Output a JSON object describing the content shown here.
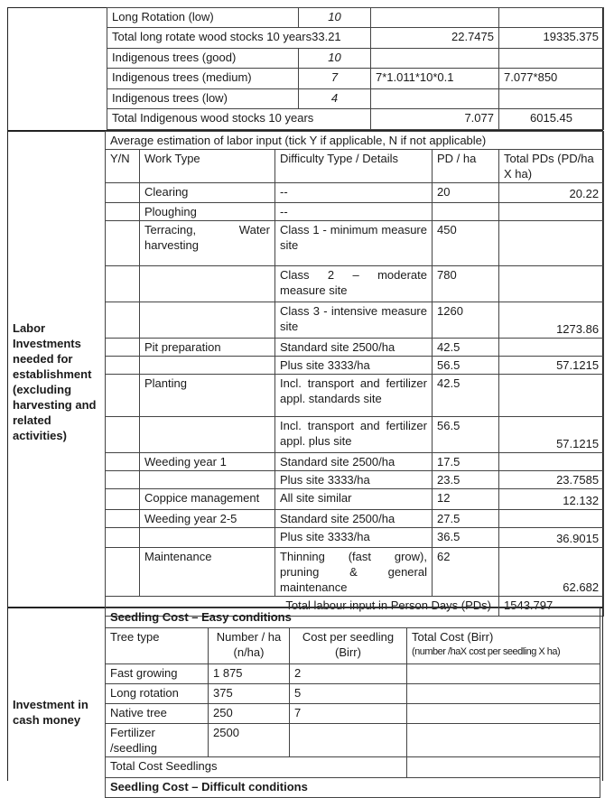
{
  "wood": {
    "rows": [
      {
        "label": "Long Rotation (low)",
        "value": "10",
        "calc": "",
        "total": ""
      },
      {
        "label": "Total long rotate wood stocks 10 years33.21",
        "value": "",
        "calc": "22.7475",
        "total": "19335.375"
      },
      {
        "label": "Indigenous trees (good)",
        "value": "10",
        "calc": "",
        "total": ""
      },
      {
        "label": "Indigenous trees (medium)",
        "value": "7",
        "calc": "7*1.011*10*0.1",
        "total": "7.077*850"
      },
      {
        "label": "Indigenous trees (low)",
        "value": "4",
        "calc": "",
        "total": ""
      },
      {
        "label": "Total Indigenous wood stocks 10 years",
        "value": "",
        "calc": "7.077",
        "total": "6015.45"
      }
    ]
  },
  "labor": {
    "section_label": "Labor Investments needed for establishment (excluding harvesting and related activities)",
    "intro": "Average estimation of labor input (tick Y if applicable, N if not applicable)",
    "headers": [
      "Y/N",
      "Work Type",
      "Difficulty Type / Details",
      "PD / ha",
      "Total PDs (PD/ha  X ha)"
    ],
    "rows": [
      {
        "yn": "",
        "work": "Clearing",
        "detail": "--",
        "pd": "20",
        "total": "20.22"
      },
      {
        "yn": "",
        "work": "Ploughing",
        "detail": "--",
        "pd": "",
        "total": ""
      },
      {
        "yn": "",
        "work": "Terracing, Water harvesting",
        "detail": "Class 1 - minimum measure site",
        "pd": "450",
        "total": ""
      },
      {
        "yn": "",
        "work": "",
        "detail": "Class 2 – moderate measure site",
        "pd": "780",
        "total": ""
      },
      {
        "yn": "",
        "work": "",
        "detail": "Class 3 - intensive measure site",
        "pd": "1260",
        "total": "1273.86"
      },
      {
        "yn": "",
        "work": "Pit preparation",
        "detail": "Standard site 2500/ha",
        "pd": "42.5",
        "total": ""
      },
      {
        "yn": "",
        "work": "",
        "detail": "Plus site 3333/ha",
        "pd": "56.5",
        "total": "57.1215"
      },
      {
        "yn": "",
        "work": "Planting",
        "detail": "Incl. transport and fertilizer appl. standards site",
        "pd": "42.5",
        "total": ""
      },
      {
        "yn": "",
        "work": "",
        "detail": "Incl. transport and fertilizer appl. plus site",
        "pd": "56.5",
        "total": "57.1215"
      },
      {
        "yn": "",
        "work": "Weeding year 1",
        "detail": "Standard site 2500/ha",
        "pd": "17.5",
        "total": ""
      },
      {
        "yn": "",
        "work": "",
        "detail": "Plus site 3333/ha",
        "pd": "23.5",
        "total": "23.7585"
      },
      {
        "yn": "",
        "work": "Coppice management",
        "detail": "All site similar",
        "pd": "12",
        "total": "12.132"
      },
      {
        "yn": "",
        "work": "Weeding year 2-5",
        "detail": "Standard site 2500/ha",
        "pd": "27.5",
        "total": ""
      },
      {
        "yn": "",
        "work": "",
        "detail": "Plus site 3333/ha",
        "pd": "36.5",
        "total": "36.9015"
      },
      {
        "yn": "",
        "work": "Maintenance",
        "detail": "Thinning (fast grow), pruning & general maintenance",
        "pd": "62",
        "total": "62.682"
      }
    ],
    "total_label": "Total labour input in Person Days (PDs)",
    "total_value": "1543.797"
  },
  "investment": {
    "section_label": "Investment in cash money",
    "easy_title": "Seedling Cost – Easy conditions",
    "headers": [
      "Tree type",
      "Number / ha (n/ha)",
      "Cost per seedling (Birr)",
      "Total Cost (Birr)",
      "(number /haX cost per seedling X  ha)"
    ],
    "rows": [
      {
        "type": "Fast growing",
        "number": "1 875",
        "cost": "2",
        "total": ""
      },
      {
        "type": "Long rotation",
        "number": "375",
        "cost": "5",
        "total": ""
      },
      {
        "type": "Native tree",
        "number": "250",
        "cost": "7",
        "total": ""
      },
      {
        "type": "Fertilizer /seedling",
        "number": "2500",
        "cost": "",
        "total": ""
      }
    ],
    "total_label": "Total Cost Seedlings",
    "difficult_title": "Seedling Cost – Difficult conditions"
  }
}
